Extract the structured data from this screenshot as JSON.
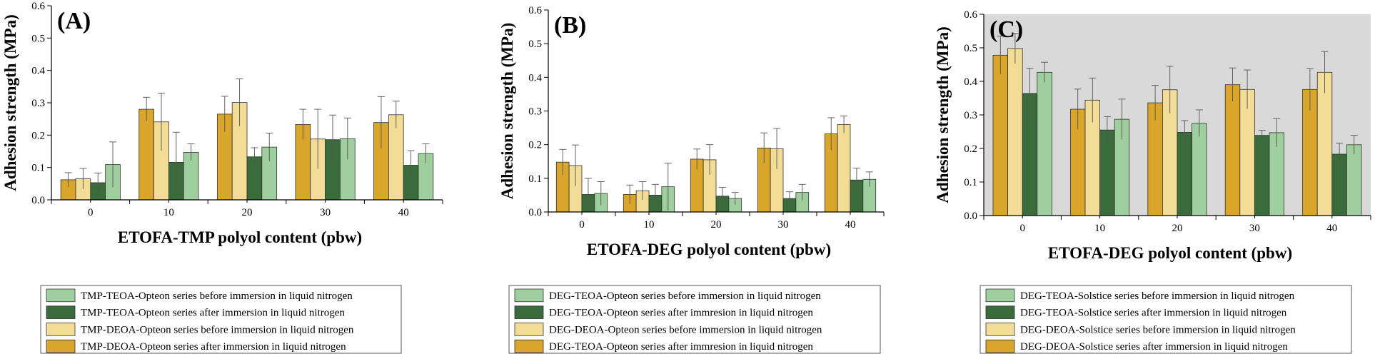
{
  "colors": {
    "before_teoa": "#9fcf9f",
    "after_teoa": "#3a6b3a",
    "before_deoa": "#f2dc96",
    "after_deoa": "#d9a52b",
    "panel_c_bg": "#d9d9d9"
  },
  "chart_data": [
    {
      "type": "bar",
      "panel_label": "(A)",
      "xlabel": "ETOFA-TMP polyol content (pbw)",
      "ylabel": "Adhesion strength (MPa)",
      "categories": [
        "0",
        "10",
        "20",
        "30",
        "40"
      ],
      "ylim": [
        0,
        0.6
      ],
      "yticks": [
        "0.0",
        "0.1",
        "0.2",
        "0.3",
        "0.4",
        "0.5",
        "0.6"
      ],
      "background": "white",
      "legend_position": "bottom",
      "series": [
        {
          "name": "TMP-DEOA-Opteon series after immersion  in liquid nitrogen",
          "color": "after_deoa",
          "values": [
            0.062,
            0.28,
            0.265,
            0.233,
            0.239
          ],
          "errors": [
            0.022,
            0.037,
            0.055,
            0.047,
            0.08
          ]
        },
        {
          "name": "TMP-DEOA-Opteon series before immersion  in liquid nitrogen",
          "color": "before_deoa",
          "values": [
            0.065,
            0.241,
            0.301,
            0.188,
            0.263
          ],
          "errors": [
            0.032,
            0.089,
            0.073,
            0.092,
            0.042
          ]
        },
        {
          "name": "TMP-TEOA-Opteon series after immersion  in liquid nitrogen",
          "color": "after_teoa",
          "values": [
            0.053,
            0.116,
            0.133,
            0.186,
            0.107
          ],
          "errors": [
            0.03,
            0.093,
            0.028,
            0.076,
            0.045
          ]
        },
        {
          "name": "TMP-TEOA-Opteon series before immersion  in liquid nitrogen",
          "color": "before_teoa",
          "values": [
            0.109,
            0.147,
            0.163,
            0.189,
            0.143
          ],
          "errors": [
            0.07,
            0.026,
            0.043,
            0.064,
            0.03
          ]
        }
      ],
      "legend_order": [
        3,
        2,
        1,
        0
      ]
    },
    {
      "type": "bar",
      "panel_label": "(B)",
      "xlabel": "ETOFA-DEG polyol content (pbw)",
      "ylabel": "Adhesion strength (MPa)",
      "categories": [
        "0",
        "10",
        "20",
        "30",
        "40"
      ],
      "ylim": [
        0,
        0.6
      ],
      "yticks": [
        "0.0",
        "0.1",
        "0.2",
        "0.3",
        "0.4",
        "0.5",
        "0.6"
      ],
      "background": "white",
      "legend_position": "bottom",
      "series": [
        {
          "name": "DEG-TEOA-Opteon series after immresion  in liquid nitrogen",
          "color": "after_deoa",
          "values": [
            0.148,
            0.052,
            0.157,
            0.19,
            0.232
          ],
          "errors": [
            0.038,
            0.028,
            0.03,
            0.045,
            0.048
          ]
        },
        {
          "name": "DEG-DEOA-Opteon series before immersion  in liquid nitrogen",
          "color": "before_deoa",
          "values": [
            0.138,
            0.063,
            0.155,
            0.188,
            0.26
          ],
          "errors": [
            0.061,
            0.027,
            0.045,
            0.06,
            0.025
          ]
        },
        {
          "name": "DEG-TEOA-Opteon series after immresion  in liquid nitrogen",
          "color": "after_teoa",
          "values": [
            0.052,
            0.05,
            0.047,
            0.04,
            0.095
          ],
          "errors": [
            0.048,
            0.032,
            0.026,
            0.02,
            0.035
          ]
        },
        {
          "name": "DEG-TEOA-Opteon series before immersion  in liquid nitrogen",
          "color": "before_teoa",
          "values": [
            0.055,
            0.075,
            0.04,
            0.058,
            0.097
          ],
          "errors": [
            0.035,
            0.07,
            0.018,
            0.024,
            0.022
          ]
        }
      ],
      "legend_order": [
        3,
        2,
        1,
        0
      ]
    },
    {
      "type": "bar",
      "panel_label": "(C)",
      "xlabel": "ETOFA-DEG polyol content (pbw)",
      "ylabel": "Adhesion strength (MPa)",
      "categories": [
        "0",
        "10",
        "20",
        "30",
        "40"
      ],
      "ylim": [
        0,
        0.6
      ],
      "yticks": [
        "0.0",
        "0.1",
        "0.2",
        "0.3",
        "0.4",
        "0.5",
        "0.6"
      ],
      "background": "gray",
      "legend_position": "bottom",
      "series": [
        {
          "name": "DEG-DEOA-Solstice series after immersion  in liquid nitrogen",
          "color": "after_deoa",
          "values": [
            0.478,
            0.317,
            0.336,
            0.39,
            0.376
          ],
          "errors": [
            0.057,
            0.06,
            0.052,
            0.05,
            0.062
          ]
        },
        {
          "name": "DEG-DEOA-Solstice series before immersion  in liquid nitrogen",
          "color": "before_deoa",
          "values": [
            0.498,
            0.344,
            0.375,
            0.376,
            0.427
          ],
          "errors": [
            0.045,
            0.066,
            0.07,
            0.058,
            0.062
          ]
        },
        {
          "name": "DEG-TEOA-Solstice series after immersion  in liquid nitrogen",
          "color": "after_teoa",
          "values": [
            0.364,
            0.255,
            0.248,
            0.239,
            0.183
          ],
          "errors": [
            0.075,
            0.04,
            0.035,
            0.015,
            0.033
          ]
        },
        {
          "name": "DEG-TEOA-Solstice series before immersion  in liquid nitrogen",
          "color": "before_teoa",
          "values": [
            0.427,
            0.287,
            0.275,
            0.247,
            0.211
          ],
          "errors": [
            0.03,
            0.06,
            0.04,
            0.042,
            0.028
          ]
        }
      ],
      "legend_order": [
        3,
        2,
        1,
        0
      ]
    }
  ]
}
